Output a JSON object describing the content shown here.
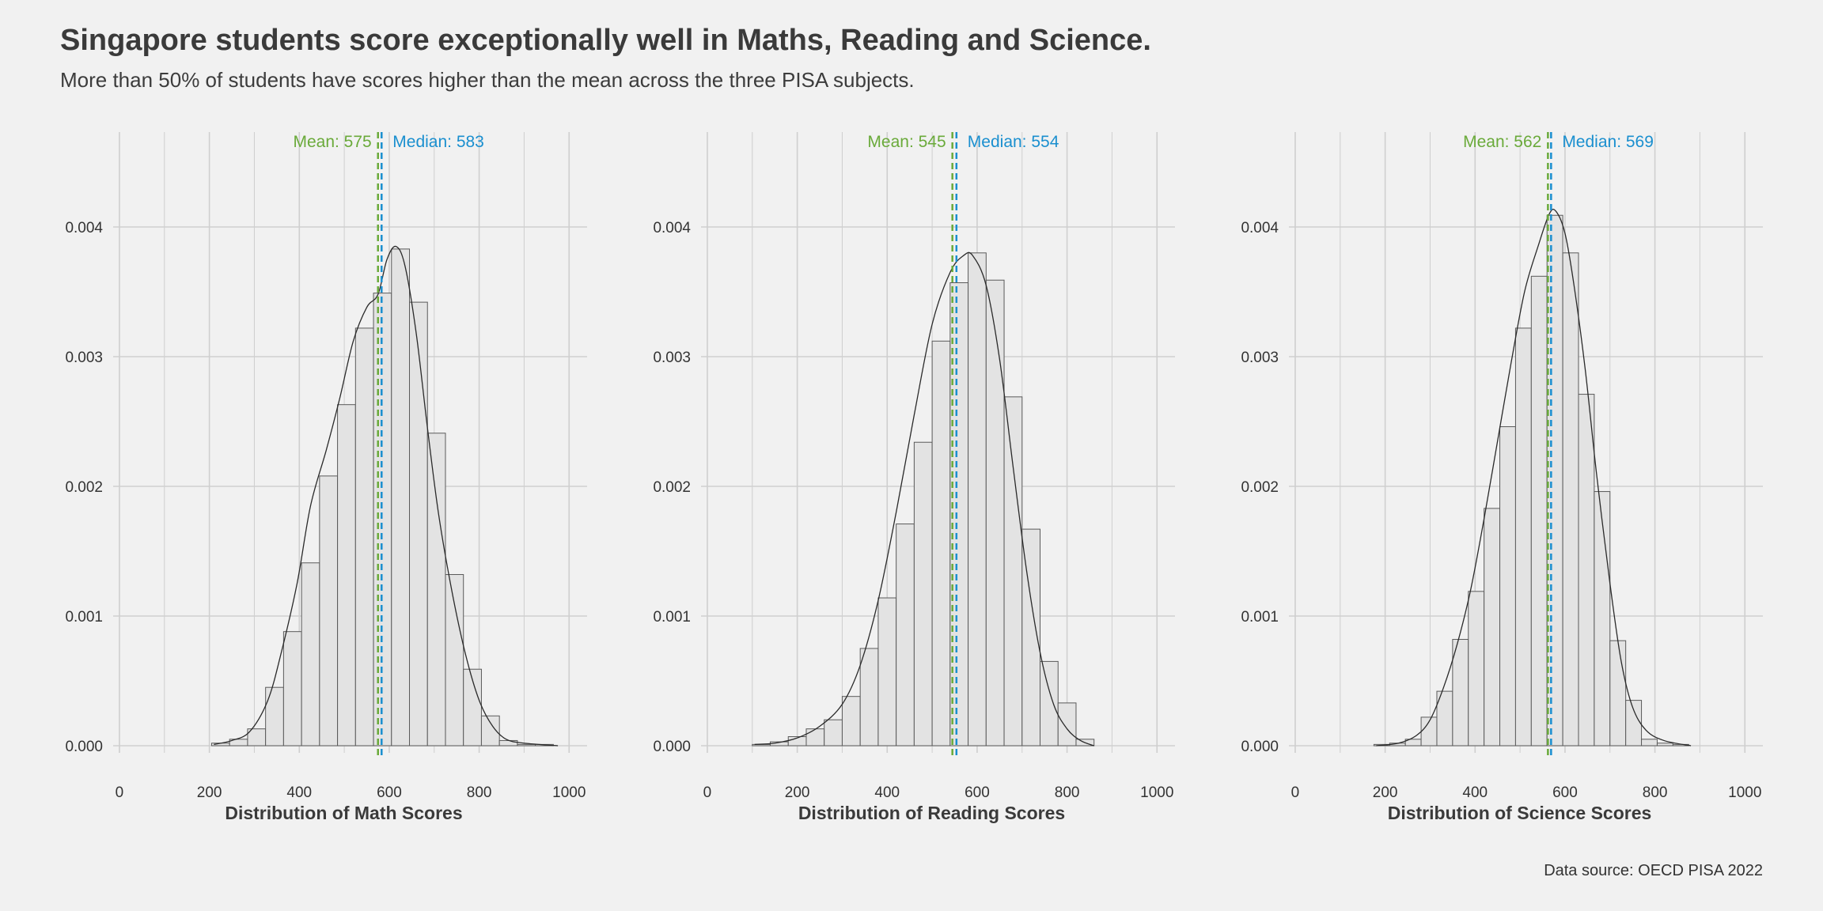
{
  "title": "Singapore students score exceptionally well in Maths, Reading and Science.",
  "subtitle": "More than 50% of students have scores higher than the mean across the three PISA subjects.",
  "caption": "Data source: OECD PISA 2022",
  "colors": {
    "background": "#f1f1f1",
    "grid": "#cfcfcf",
    "bar_fill": "#e3e3e3",
    "bar_stroke": "#5a5a5a",
    "mean": "#6aaa3a",
    "median": "#1a8fcf",
    "density": "#2a2a2a"
  },
  "chart_data": [
    {
      "type": "histogram",
      "xlabel": "Distribution of Math Scores",
      "ylabel": "",
      "xlim": [
        0,
        1000
      ],
      "ylim": [
        0,
        0.0047
      ],
      "xticks": [
        "0",
        "200",
        "400",
        "600",
        "800",
        "1000"
      ],
      "yticks": [
        "0.000",
        "0.001",
        "0.002",
        "0.003",
        "0.004"
      ],
      "grid": true,
      "bin_width": 40,
      "bins": [
        {
          "x0": 205,
          "x1": 245,
          "density": 2e-05
        },
        {
          "x0": 245,
          "x1": 285,
          "density": 5e-05
        },
        {
          "x0": 285,
          "x1": 325,
          "density": 0.00013
        },
        {
          "x0": 325,
          "x1": 365,
          "density": 0.00045
        },
        {
          "x0": 365,
          "x1": 405,
          "density": 0.00088
        },
        {
          "x0": 405,
          "x1": 445,
          "density": 0.00141
        },
        {
          "x0": 445,
          "x1": 485,
          "density": 0.00208
        },
        {
          "x0": 485,
          "x1": 525,
          "density": 0.00263
        },
        {
          "x0": 525,
          "x1": 565,
          "density": 0.00322
        },
        {
          "x0": 565,
          "x1": 605,
          "density": 0.00349
        },
        {
          "x0": 605,
          "x1": 645,
          "density": 0.00383
        },
        {
          "x0": 645,
          "x1": 685,
          "density": 0.00342
        },
        {
          "x0": 685,
          "x1": 725,
          "density": 0.00241
        },
        {
          "x0": 725,
          "x1": 765,
          "density": 0.00132
        },
        {
          "x0": 765,
          "x1": 805,
          "density": 0.00059
        },
        {
          "x0": 805,
          "x1": 845,
          "density": 0.00023
        },
        {
          "x0": 845,
          "x1": 885,
          "density": 4e-05
        },
        {
          "x0": 885,
          "x1": 925,
          "density": 1e-05
        },
        {
          "x0": 925,
          "x1": 965,
          "density": 1e-05
        }
      ],
      "density_curve": [
        [
          210,
          1e-05
        ],
        [
          250,
          4e-05
        ],
        [
          290,
          0.00011
        ],
        [
          330,
          0.00035
        ],
        [
          360,
          0.00072
        ],
        [
          395,
          0.00125
        ],
        [
          425,
          0.00185
        ],
        [
          460,
          0.00228
        ],
        [
          490,
          0.00268
        ],
        [
          520,
          0.00312
        ],
        [
          550,
          0.00338
        ],
        [
          575,
          0.00348
        ],
        [
          595,
          0.00375
        ],
        [
          615,
          0.00385
        ],
        [
          635,
          0.0037
        ],
        [
          660,
          0.00318
        ],
        [
          685,
          0.00245
        ],
        [
          710,
          0.00178
        ],
        [
          740,
          0.00118
        ],
        [
          770,
          0.0007
        ],
        [
          800,
          0.00035
        ],
        [
          830,
          0.00015
        ],
        [
          860,
          5e-05
        ],
        [
          900,
          2e-05
        ],
        [
          975,
          0.0
        ]
      ],
      "mean": {
        "value": 575,
        "label": "Mean: 575"
      },
      "median": {
        "value": 583,
        "label": "Median: 583"
      }
    },
    {
      "type": "histogram",
      "xlabel": "Distribution of Reading Scores",
      "ylabel": "",
      "xlim": [
        0,
        1000
      ],
      "ylim": [
        0,
        0.0047
      ],
      "xticks": [
        "0",
        "200",
        "400",
        "600",
        "800",
        "1000"
      ],
      "yticks": [
        "0.000",
        "0.001",
        "0.002",
        "0.003",
        "0.004"
      ],
      "grid": true,
      "bin_width": 40,
      "bins": [
        {
          "x0": 100,
          "x1": 140,
          "density": 1e-05
        },
        {
          "x0": 140,
          "x1": 180,
          "density": 3e-05
        },
        {
          "x0": 180,
          "x1": 220,
          "density": 7e-05
        },
        {
          "x0": 220,
          "x1": 260,
          "density": 0.00013
        },
        {
          "x0": 260,
          "x1": 300,
          "density": 0.0002
        },
        {
          "x0": 300,
          "x1": 340,
          "density": 0.00038
        },
        {
          "x0": 340,
          "x1": 380,
          "density": 0.00075
        },
        {
          "x0": 380,
          "x1": 420,
          "density": 0.00114
        },
        {
          "x0": 420,
          "x1": 460,
          "density": 0.00171
        },
        {
          "x0": 460,
          "x1": 500,
          "density": 0.00234
        },
        {
          "x0": 500,
          "x1": 540,
          "density": 0.00312
        },
        {
          "x0": 540,
          "x1": 580,
          "density": 0.00357
        },
        {
          "x0": 580,
          "x1": 620,
          "density": 0.0038
        },
        {
          "x0": 620,
          "x1": 660,
          "density": 0.00359
        },
        {
          "x0": 660,
          "x1": 700,
          "density": 0.00269
        },
        {
          "x0": 700,
          "x1": 740,
          "density": 0.00167
        },
        {
          "x0": 740,
          "x1": 780,
          "density": 0.00065
        },
        {
          "x0": 780,
          "x1": 820,
          "density": 0.00033
        },
        {
          "x0": 820,
          "x1": 860,
          "density": 5e-05
        }
      ],
      "density_curve": [
        [
          105,
          1e-05
        ],
        [
          150,
          2e-05
        ],
        [
          200,
          6e-05
        ],
        [
          250,
          0.00015
        ],
        [
          300,
          0.00032
        ],
        [
          340,
          0.00062
        ],
        [
          380,
          0.00112
        ],
        [
          420,
          0.0018
        ],
        [
          460,
          0.00255
        ],
        [
          500,
          0.00325
        ],
        [
          540,
          0.00365
        ],
        [
          570,
          0.00378
        ],
        [
          590,
          0.00378
        ],
        [
          620,
          0.00355
        ],
        [
          650,
          0.00298
        ],
        [
          680,
          0.00215
        ],
        [
          710,
          0.00135
        ],
        [
          740,
          0.00072
        ],
        [
          770,
          0.00032
        ],
        [
          800,
          0.00013
        ],
        [
          830,
          4e-05
        ],
        [
          860,
          0.0
        ]
      ],
      "mean": {
        "value": 545,
        "label": "Mean: 545"
      },
      "median": {
        "value": 554,
        "label": "Median: 554"
      }
    },
    {
      "type": "histogram",
      "xlabel": "Distribution of Science Scores",
      "ylabel": "",
      "xlim": [
        0,
        1000
      ],
      "ylim": [
        0,
        0.0047
      ],
      "xticks": [
        "0",
        "200",
        "400",
        "600",
        "800",
        "1000"
      ],
      "yticks": [
        "0.000",
        "0.001",
        "0.002",
        "0.003",
        "0.004"
      ],
      "grid": true,
      "bin_width": 35,
      "bins": [
        {
          "x0": 175,
          "x1": 210,
          "density": 1e-05
        },
        {
          "x0": 210,
          "x1": 245,
          "density": 2e-05
        },
        {
          "x0": 245,
          "x1": 280,
          "density": 5e-05
        },
        {
          "x0": 280,
          "x1": 315,
          "density": 0.00022
        },
        {
          "x0": 315,
          "x1": 350,
          "density": 0.00042
        },
        {
          "x0": 350,
          "x1": 385,
          "density": 0.00082
        },
        {
          "x0": 385,
          "x1": 420,
          "density": 0.00119
        },
        {
          "x0": 420,
          "x1": 455,
          "density": 0.00183
        },
        {
          "x0": 455,
          "x1": 490,
          "density": 0.00246
        },
        {
          "x0": 490,
          "x1": 525,
          "density": 0.00322
        },
        {
          "x0": 525,
          "x1": 560,
          "density": 0.00362
        },
        {
          "x0": 560,
          "x1": 595,
          "density": 0.00409
        },
        {
          "x0": 595,
          "x1": 630,
          "density": 0.0038
        },
        {
          "x0": 630,
          "x1": 665,
          "density": 0.00271
        },
        {
          "x0": 665,
          "x1": 700,
          "density": 0.00196
        },
        {
          "x0": 700,
          "x1": 735,
          "density": 0.00081
        },
        {
          "x0": 735,
          "x1": 770,
          "density": 0.00035
        },
        {
          "x0": 770,
          "x1": 805,
          "density": 5e-05
        },
        {
          "x0": 805,
          "x1": 840,
          "density": 2e-05
        },
        {
          "x0": 840,
          "x1": 875,
          "density": 1e-05
        }
      ],
      "density_curve": [
        [
          180,
          0.0
        ],
        [
          230,
          2e-05
        ],
        [
          270,
          8e-05
        ],
        [
          300,
          0.0002
        ],
        [
          330,
          0.00045
        ],
        [
          360,
          0.00078
        ],
        [
          390,
          0.0012
        ],
        [
          420,
          0.00175
        ],
        [
          450,
          0.00235
        ],
        [
          480,
          0.00295
        ],
        [
          510,
          0.0035
        ],
        [
          540,
          0.00385
        ],
        [
          565,
          0.0041
        ],
        [
          580,
          0.00412
        ],
        [
          600,
          0.00395
        ],
        [
          620,
          0.00355
        ],
        [
          645,
          0.0029
        ],
        [
          670,
          0.0021
        ],
        [
          700,
          0.00125
        ],
        [
          725,
          0.00065
        ],
        [
          750,
          0.0003
        ],
        [
          780,
          0.00012
        ],
        [
          820,
          4e-05
        ],
        [
          880,
          0.0
        ]
      ],
      "mean": {
        "value": 562,
        "label": "Mean: 562"
      },
      "median": {
        "value": 569,
        "label": "Median: 569"
      }
    }
  ]
}
